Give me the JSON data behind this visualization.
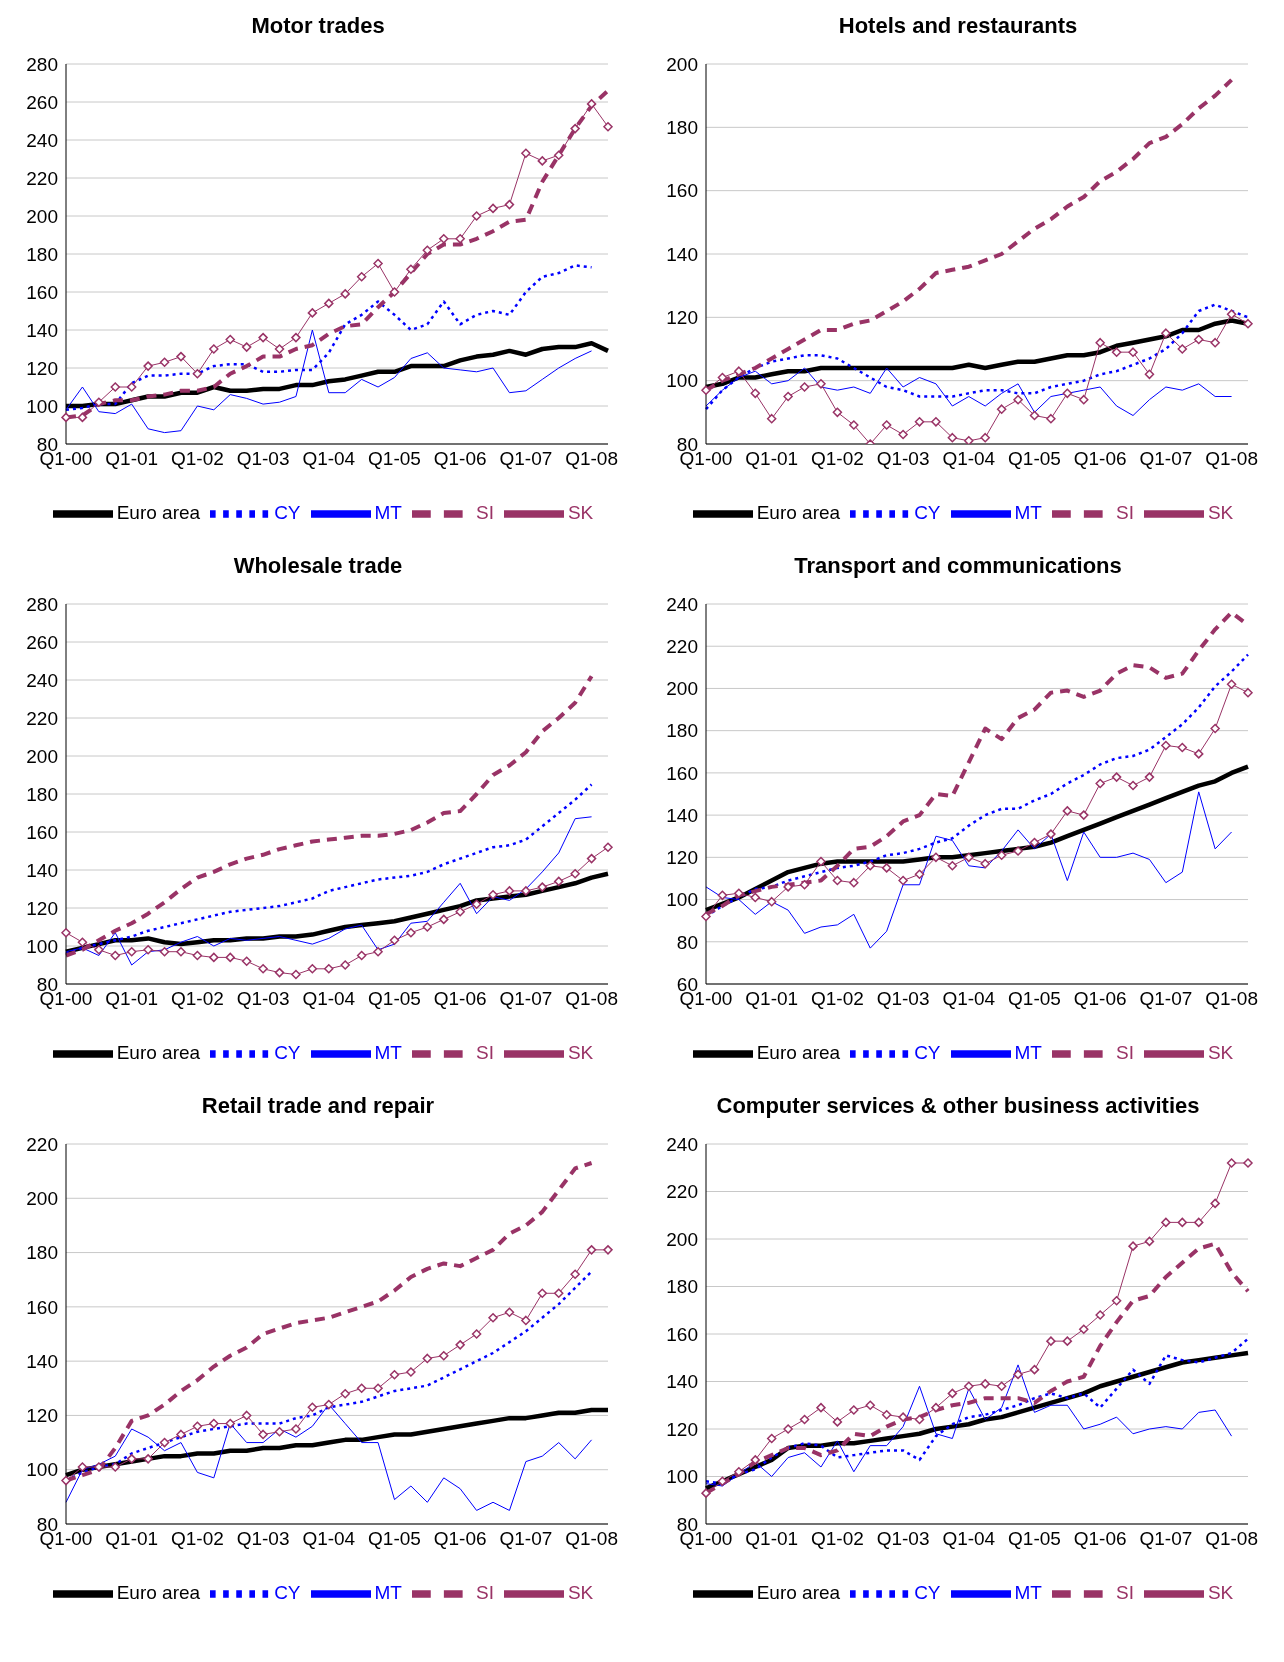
{
  "chart_data": [
    {
      "type": "line",
      "title": "Motor trades",
      "categories": [
        "Q1-00",
        null,
        null,
        null,
        "Q1-01",
        null,
        null,
        null,
        "Q1-02",
        null,
        null,
        null,
        "Q1-03",
        null,
        null,
        null,
        "Q1-04",
        null,
        null,
        null,
        "Q1-05",
        null,
        null,
        null,
        "Q1-06",
        null,
        null,
        null,
        "Q1-07",
        null,
        null,
        null,
        "Q1-08",
        null
      ],
      "ylim": [
        80,
        280
      ],
      "yticks": [
        80,
        100,
        120,
        140,
        160,
        180,
        200,
        220,
        240,
        260,
        280
      ],
      "grid": "y",
      "legend": "bottom",
      "series": [
        {
          "name": "Euro area",
          "color": "#000000",
          "line_style": "solid",
          "marker": "none",
          "values": [
            100,
            100,
            101,
            101,
            103,
            105,
            105,
            107,
            107,
            110,
            108,
            108,
            109,
            109,
            111,
            111,
            113,
            114,
            116,
            118,
            118,
            121,
            121,
            121,
            124,
            126,
            127,
            129,
            127,
            130,
            131,
            131,
            133,
            129
          ]
        },
        {
          "name": "CY",
          "color": "#0000ff",
          "line_style": "dotted",
          "marker": "none",
          "values": [
            98,
            99,
            101,
            101,
            112,
            116,
            116,
            117,
            117,
            121,
            122,
            122,
            118,
            118,
            119,
            119,
            128,
            143,
            148,
            155,
            148,
            140,
            143,
            155,
            143,
            148,
            150,
            148,
            160,
            168,
            170,
            174,
            173,
            null
          ]
        },
        {
          "name": "MT",
          "color": "#0000ff",
          "line_style": "solid",
          "marker": "none",
          "values": [
            98,
            110,
            97,
            96,
            101,
            88,
            86,
            87,
            100,
            98,
            106,
            104,
            101,
            102,
            105,
            140,
            107,
            107,
            114,
            110,
            115,
            125,
            128,
            120,
            119,
            118,
            120,
            107,
            108,
            114,
            120,
            125,
            129,
            null
          ]
        },
        {
          "name": "SI",
          "color": "#993366",
          "line_style": "dashed",
          "marker": "none",
          "values": [
            94,
            95,
            101,
            103,
            103,
            105,
            106,
            108,
            108,
            110,
            117,
            121,
            126,
            126,
            130,
            132,
            138,
            142,
            143,
            152,
            160,
            170,
            180,
            185,
            185,
            188,
            192,
            197,
            198,
            218,
            232,
            246,
            258,
            266
          ]
        },
        {
          "name": "SK",
          "color": "#993366",
          "line_style": "solid",
          "marker": "diamond",
          "values": [
            94,
            94,
            102,
            110,
            110,
            121,
            123,
            126,
            117,
            130,
            135,
            131,
            136,
            130,
            136,
            149,
            154,
            159,
            168,
            175,
            160,
            172,
            182,
            188,
            188,
            200,
            204,
            206,
            233,
            229,
            232,
            246,
            259,
            247
          ]
        }
      ]
    },
    {
      "type": "line",
      "title": "Hotels and restaurants",
      "categories": [
        "Q1-00",
        null,
        null,
        null,
        "Q1-01",
        null,
        null,
        null,
        "Q1-02",
        null,
        null,
        null,
        "Q1-03",
        null,
        null,
        null,
        "Q1-04",
        null,
        null,
        null,
        "Q1-05",
        null,
        null,
        null,
        "Q1-06",
        null,
        null,
        null,
        "Q1-07",
        null,
        null,
        null,
        "Q1-08",
        null
      ],
      "ylim": [
        80,
        200
      ],
      "yticks": [
        80,
        100,
        120,
        140,
        160,
        180,
        200
      ],
      "grid": "y",
      "legend": "bottom",
      "series": [
        {
          "name": "Euro area",
          "color": "#000000",
          "line_style": "solid",
          "marker": "none",
          "values": [
            98,
            99,
            101,
            101,
            102,
            103,
            103,
            104,
            104,
            104,
            104,
            104,
            104,
            104,
            104,
            104,
            105,
            104,
            105,
            106,
            106,
            107,
            108,
            108,
            109,
            111,
            112,
            113,
            114,
            116,
            116,
            118,
            119,
            118
          ]
        },
        {
          "name": "CY",
          "color": "#0000ff",
          "line_style": "dotted",
          "marker": "none",
          "values": [
            91,
            97,
            101,
            104,
            106,
            107,
            108,
            108,
            107,
            104,
            101,
            98,
            97,
            95,
            95,
            95,
            96,
            97,
            97,
            96,
            96,
            98,
            99,
            100,
            102,
            103,
            105,
            107,
            110,
            115,
            122,
            124,
            122,
            120
          ]
        },
        {
          "name": "MT",
          "color": "#0000ff",
          "line_style": "solid",
          "marker": "none",
          "values": [
            92,
            97,
            101,
            103,
            99,
            100,
            104,
            98,
            97,
            98,
            96,
            104,
            98,
            101,
            99,
            92,
            95,
            92,
            96,
            99,
            90,
            95,
            96,
            97,
            98,
            92,
            89,
            94,
            98,
            97,
            99,
            95,
            95,
            null
          ]
        },
        {
          "name": "SI",
          "color": "#993366",
          "line_style": "dashed",
          "marker": "none",
          "values": [
            97,
            100,
            102,
            104,
            107,
            110,
            113,
            116,
            116,
            118,
            119,
            122,
            125,
            129,
            134,
            135,
            136,
            138,
            140,
            144,
            148,
            151,
            155,
            158,
            163,
            166,
            170,
            175,
            177,
            181,
            186,
            190,
            195,
            null
          ]
        },
        {
          "name": "SK",
          "color": "#993366",
          "line_style": "solid",
          "marker": "diamond",
          "values": [
            97,
            101,
            103,
            96,
            88,
            95,
            98,
            99,
            90,
            86,
            80,
            86,
            83,
            87,
            87,
            82,
            81,
            82,
            91,
            94,
            89,
            88,
            96,
            94,
            112,
            109,
            109,
            102,
            115,
            110,
            113,
            112,
            121,
            118
          ]
        }
      ]
    },
    {
      "type": "line",
      "title": "Wholesale trade",
      "categories": [
        "Q1-00",
        null,
        null,
        null,
        "Q1-01",
        null,
        null,
        null,
        "Q1-02",
        null,
        null,
        null,
        "Q1-03",
        null,
        null,
        null,
        "Q1-04",
        null,
        null,
        null,
        "Q1-05",
        null,
        null,
        null,
        "Q1-06",
        null,
        null,
        null,
        "Q1-07",
        null,
        null,
        null,
        "Q1-08",
        null
      ],
      "ylim": [
        80,
        280
      ],
      "yticks": [
        80,
        100,
        120,
        140,
        160,
        180,
        200,
        220,
        240,
        260,
        280
      ],
      "grid": "y",
      "legend": "bottom",
      "series": [
        {
          "name": "Euro area",
          "color": "#000000",
          "line_style": "solid",
          "marker": "none",
          "values": [
            97,
            99,
            101,
            103,
            103,
            104,
            102,
            101,
            102,
            103,
            103,
            104,
            104,
            105,
            105,
            106,
            108,
            110,
            111,
            112,
            113,
            115,
            117,
            119,
            121,
            124,
            125,
            126,
            127,
            129,
            131,
            133,
            136,
            138
          ]
        },
        {
          "name": "CY",
          "color": "#0000ff",
          "line_style": "dotted",
          "marker": "none",
          "values": [
            96,
            99,
            101,
            103,
            105,
            108,
            110,
            112,
            114,
            116,
            118,
            119,
            120,
            121,
            123,
            125,
            129,
            131,
            133,
            135,
            136,
            137,
            139,
            143,
            146,
            149,
            152,
            153,
            156,
            163,
            170,
            177,
            185,
            null
          ]
        },
        {
          "name": "MT",
          "color": "#0000ff",
          "line_style": "solid",
          "marker": "none",
          "values": [
            97,
            99,
            95,
            107,
            90,
            97,
            98,
            102,
            105,
            100,
            104,
            103,
            104,
            105,
            103,
            101,
            104,
            109,
            111,
            98,
            101,
            112,
            113,
            123,
            133,
            117,
            126,
            124,
            130,
            139,
            149,
            167,
            168,
            null
          ]
        },
        {
          "name": "SI",
          "color": "#993366",
          "line_style": "dashed",
          "marker": "none",
          "values": [
            95,
            98,
            103,
            108,
            112,
            117,
            123,
            130,
            136,
            139,
            143,
            146,
            148,
            151,
            153,
            155,
            156,
            157,
            158,
            158,
            159,
            161,
            165,
            170,
            171,
            180,
            190,
            195,
            202,
            213,
            220,
            228,
            242,
            null
          ]
        },
        {
          "name": "SK",
          "color": "#993366",
          "line_style": "solid",
          "marker": "diamond",
          "values": [
            107,
            102,
            98,
            95,
            97,
            98,
            97,
            97,
            95,
            94,
            94,
            92,
            88,
            86,
            85,
            88,
            88,
            90,
            95,
            97,
            103,
            107,
            110,
            114,
            118,
            122,
            127,
            129,
            129,
            131,
            134,
            138,
            146,
            152
          ]
        }
      ]
    },
    {
      "type": "line",
      "title": "Transport and communications",
      "categories": [
        "Q1-00",
        null,
        null,
        null,
        "Q1-01",
        null,
        null,
        null,
        "Q1-02",
        null,
        null,
        null,
        "Q1-03",
        null,
        null,
        null,
        "Q1-04",
        null,
        null,
        null,
        "Q1-05",
        null,
        null,
        null,
        "Q1-06",
        null,
        null,
        null,
        "Q1-07",
        null,
        null,
        null,
        "Q1-08",
        null
      ],
      "ylim": [
        60,
        240
      ],
      "yticks": [
        60,
        80,
        100,
        120,
        140,
        160,
        180,
        200,
        220,
        240
      ],
      "grid": "y",
      "legend": "bottom",
      "series": [
        {
          "name": "Euro area",
          "color": "#000000",
          "line_style": "solid",
          "marker": "none",
          "values": [
            95,
            98,
            101,
            105,
            109,
            113,
            115,
            117,
            118,
            118,
            118,
            118,
            118,
            119,
            120,
            120,
            121,
            122,
            123,
            124,
            125,
            127,
            130,
            133,
            136,
            139,
            142,
            145,
            148,
            151,
            154,
            156,
            160,
            163
          ]
        },
        {
          "name": "CY",
          "color": "#0000ff",
          "line_style": "dotted",
          "marker": "none",
          "values": [
            92,
            97,
            101,
            105,
            106,
            109,
            111,
            113,
            115,
            116,
            118,
            121,
            122,
            124,
            127,
            129,
            135,
            140,
            143,
            143,
            147,
            150,
            155,
            159,
            164,
            167,
            168,
            171,
            177,
            183,
            191,
            201,
            208,
            216
          ]
        },
        {
          "name": "MT",
          "color": "#0000ff",
          "line_style": "solid",
          "marker": "none",
          "values": [
            106,
            101,
            100,
            93,
            99,
            95,
            84,
            87,
            88,
            93,
            77,
            85,
            107,
            107,
            130,
            128,
            116,
            115,
            123,
            133,
            124,
            131,
            109,
            132,
            120,
            120,
            122,
            119,
            108,
            113,
            151,
            124,
            132,
            null
          ]
        },
        {
          "name": "SI",
          "color": "#993366",
          "line_style": "dashed",
          "marker": "none",
          "values": [
            93,
            97,
            102,
            104,
            106,
            107,
            108,
            109,
            116,
            124,
            125,
            130,
            137,
            140,
            150,
            149,
            165,
            181,
            176,
            186,
            190,
            198,
            199,
            196,
            199,
            207,
            211,
            210,
            205,
            207,
            218,
            228,
            236,
            230
          ]
        },
        {
          "name": "SK",
          "color": "#993366",
          "line_style": "solid",
          "marker": "diamond",
          "values": [
            92,
            102,
            103,
            101,
            99,
            106,
            107,
            118,
            109,
            108,
            116,
            115,
            109,
            112,
            120,
            116,
            120,
            117,
            121,
            123,
            127,
            131,
            142,
            140,
            155,
            158,
            154,
            158,
            173,
            172,
            169,
            181,
            202,
            198
          ]
        }
      ]
    },
    {
      "type": "line",
      "title": "Retail trade and repair",
      "categories": [
        "Q1-00",
        null,
        null,
        null,
        "Q1-01",
        null,
        null,
        null,
        "Q1-02",
        null,
        null,
        null,
        "Q1-03",
        null,
        null,
        null,
        "Q1-04",
        null,
        null,
        null,
        "Q1-05",
        null,
        null,
        null,
        "Q1-06",
        null,
        null,
        null,
        "Q1-07",
        null,
        null,
        null,
        "Q1-08",
        null
      ],
      "ylim": [
        80,
        220
      ],
      "yticks": [
        80,
        100,
        120,
        140,
        160,
        180,
        200,
        220
      ],
      "grid": "y",
      "legend": "bottom",
      "series": [
        {
          "name": "Euro area",
          "color": "#000000",
          "line_style": "solid",
          "marker": "none",
          "values": [
            98,
            100,
            101,
            102,
            103,
            104,
            105,
            105,
            106,
            106,
            107,
            107,
            108,
            108,
            109,
            109,
            110,
            111,
            111,
            112,
            113,
            113,
            114,
            115,
            116,
            117,
            118,
            119,
            119,
            120,
            121,
            121,
            122,
            122
          ]
        },
        {
          "name": "CY",
          "color": "#0000ff",
          "line_style": "dotted",
          "marker": "none",
          "values": [
            96,
            99,
            101,
            102,
            106,
            108,
            110,
            112,
            114,
            115,
            116,
            117,
            117,
            117,
            119,
            120,
            123,
            124,
            125,
            127,
            129,
            130,
            131,
            134,
            137,
            140,
            143,
            147,
            151,
            156,
            161,
            167,
            173,
            null
          ]
        },
        {
          "name": "MT",
          "color": "#0000ff",
          "line_style": "solid",
          "marker": "none",
          "values": [
            88,
            100,
            102,
            105,
            115,
            112,
            107,
            110,
            99,
            97,
            117,
            110,
            110,
            115,
            112,
            116,
            124,
            117,
            110,
            110,
            89,
            94,
            88,
            97,
            93,
            85,
            88,
            85,
            103,
            105,
            110,
            104,
            111,
            null
          ]
        },
        {
          "name": "SI",
          "color": "#993366",
          "line_style": "dashed",
          "marker": "none",
          "values": [
            96,
            98,
            100,
            108,
            118,
            120,
            124,
            129,
            133,
            138,
            142,
            145,
            150,
            152,
            154,
            155,
            156,
            158,
            160,
            162,
            166,
            171,
            174,
            176,
            175,
            178,
            181,
            187,
            190,
            195,
            203,
            211,
            213,
            null
          ]
        },
        {
          "name": "SK",
          "color": "#993366",
          "line_style": "solid",
          "marker": "diamond",
          "values": [
            96,
            101,
            101,
            101,
            104,
            104,
            110,
            113,
            116,
            117,
            117,
            120,
            113,
            114,
            115,
            123,
            124,
            128,
            130,
            130,
            135,
            136,
            141,
            142,
            146,
            150,
            156,
            158,
            155,
            165,
            165,
            172,
            181,
            181
          ]
        }
      ]
    },
    {
      "type": "line",
      "title": "Computer services & other business activities",
      "categories": [
        "Q1-00",
        null,
        null,
        null,
        "Q1-01",
        null,
        null,
        null,
        "Q1-02",
        null,
        null,
        null,
        "Q1-03",
        null,
        null,
        null,
        "Q1-04",
        null,
        null,
        null,
        "Q1-05",
        null,
        null,
        null,
        "Q1-06",
        null,
        null,
        null,
        "Q1-07",
        null,
        null,
        null,
        "Q1-08",
        null
      ],
      "ylim": [
        80,
        240
      ],
      "yticks": [
        80,
        100,
        120,
        140,
        160,
        180,
        200,
        220,
        240
      ],
      "grid": "y",
      "legend": "bottom",
      "series": [
        {
          "name": "Euro area",
          "color": "#000000",
          "line_style": "solid",
          "marker": "none",
          "values": [
            95,
            98,
            101,
            104,
            107,
            112,
            113,
            113,
            114,
            114,
            115,
            116,
            117,
            118,
            120,
            121,
            122,
            124,
            125,
            127,
            129,
            131,
            133,
            135,
            138,
            140,
            142,
            144,
            146,
            148,
            149,
            150,
            151,
            152
          ]
        },
        {
          "name": "CY",
          "color": "#0000ff",
          "line_style": "dotted",
          "marker": "none",
          "values": [
            98,
            97,
            101,
            103,
            108,
            112,
            114,
            113,
            108,
            109,
            110,
            111,
            111,
            107,
            117,
            122,
            125,
            126,
            128,
            130,
            133,
            135,
            133,
            135,
            129,
            137,
            145,
            139,
            151,
            149,
            148,
            150,
            152,
            158
          ]
        },
        {
          "name": "MT",
          "color": "#0000ff",
          "line_style": "solid",
          "marker": "none",
          "values": [
            97,
            96,
            101,
            106,
            100,
            108,
            110,
            104,
            115,
            102,
            113,
            113,
            121,
            138,
            118,
            116,
            137,
            124,
            129,
            147,
            127,
            130,
            130,
            120,
            122,
            125,
            118,
            120,
            121,
            120,
            127,
            128,
            117,
            null
          ]
        },
        {
          "name": "SI",
          "color": "#993366",
          "line_style": "dashed",
          "marker": "none",
          "values": [
            93,
            97,
            101,
            106,
            109,
            112,
            112,
            109,
            111,
            118,
            117,
            121,
            124,
            125,
            128,
            130,
            131,
            133,
            133,
            133,
            131,
            136,
            140,
            142,
            155,
            165,
            174,
            176,
            184,
            190,
            196,
            198,
            186,
            178
          ]
        },
        {
          "name": "SK",
          "color": "#993366",
          "line_style": "solid",
          "marker": "diamond",
          "values": [
            93,
            98,
            102,
            107,
            116,
            120,
            124,
            129,
            123,
            128,
            130,
            126,
            125,
            124,
            129,
            135,
            138,
            139,
            138,
            143,
            145,
            157,
            157,
            162,
            168,
            174,
            197,
            199,
            207,
            207,
            207,
            215,
            232,
            232
          ]
        }
      ]
    }
  ]
}
